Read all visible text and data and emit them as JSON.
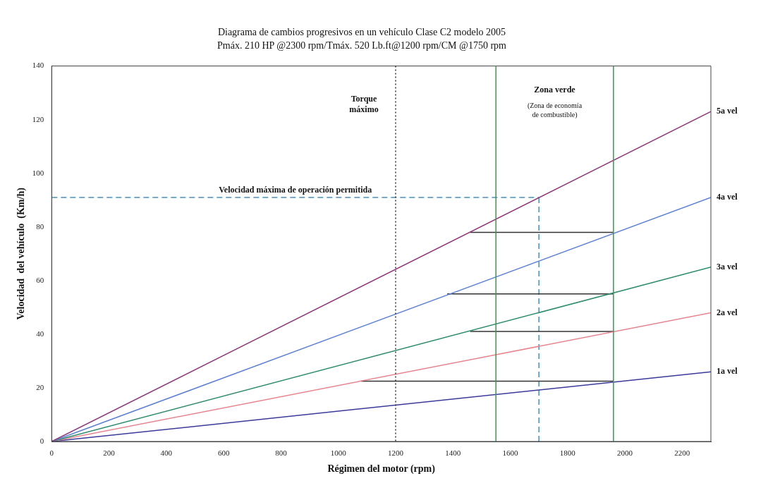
{
  "chart_data": {
    "type": "line",
    "title": "Diagrama de cambios progresivos en un vehículo Clase C2 modelo 2005",
    "subtitle": "Pmáx. 210 HP @2300 rpm/Tmáx. 520 Lb.ft@1200 rpm/CM @1750 rpm",
    "xlabel": "Régimen del motor (rpm)",
    "ylabel": "Velocidad  del vehículo  (Km/h)",
    "xlim": [
      0,
      2300
    ],
    "xticks": [
      0,
      200,
      400,
      600,
      800,
      1000,
      1200,
      1400,
      1600,
      1800,
      2000,
      2200
    ],
    "ylim": [
      0,
      140
    ],
    "yticks": [
      0,
      20,
      40,
      60,
      80,
      100,
      120,
      140
    ],
    "grid": false,
    "legend": false,
    "marker": "none",
    "series": [
      {
        "name": "5a vel",
        "color": "#8b3a7a",
        "x": [
          0,
          2300
        ],
        "values": [
          0,
          123
        ]
      },
      {
        "name": "4a vel",
        "color": "#5b7fd6",
        "x": [
          0,
          2300
        ],
        "values": [
          0,
          91
        ]
      },
      {
        "name": "3a vel",
        "color": "#2e8b6e",
        "x": [
          0,
          2300
        ],
        "values": [
          0,
          65
        ]
      },
      {
        "name": "2a vel",
        "color": "#e8858f",
        "x": [
          0,
          2300
        ],
        "values": [
          0,
          48
        ]
      },
      {
        "name": "1a vel",
        "color": "#3a3a9a",
        "x": [
          0,
          2300
        ],
        "values": [
          0,
          26
        ]
      },
      {
        "color": "#333333",
        "x": [
          1460,
          1960
        ],
        "values": [
          78,
          78
        ]
      },
      {
        "color": "#333333",
        "x": [
          1380,
          1960
        ],
        "values": [
          55,
          55
        ]
      },
      {
        "color": "#333333",
        "x": [
          1460,
          1960
        ],
        "values": [
          41,
          41
        ]
      },
      {
        "color": "#333333",
        "x": [
          1080,
          1960
        ],
        "values": [
          22.5,
          22.5
        ]
      },
      {
        "color": "#4a90b8",
        "x": [
          0,
          1700
        ],
        "values": [
          91,
          91
        ],
        "line_style": "dashed"
      },
      {
        "color": "#4a90b8",
        "x": [
          1700,
          1700
        ],
        "values": [
          0,
          91
        ],
        "line_style": "dashed"
      }
    ],
    "ref_lines": [
      {
        "axis": "x",
        "value": 1200,
        "label": "Torque máximo",
        "color": "#333333",
        "line_style": "dotted"
      },
      {
        "axis": "x",
        "value": 1550,
        "label": null,
        "color": "#3a9a4a",
        "line_style": "solid"
      },
      {
        "axis": "x",
        "value": 1960,
        "label": null,
        "color": "#3a9a4a",
        "line_style": "solid"
      }
    ],
    "annotations": [
      {
        "text": "Velocidad máxima de operación permitida",
        "x": 850,
        "y": 91
      },
      "Zona verde",
      "(Zona de economía de combustible)"
    ]
  }
}
